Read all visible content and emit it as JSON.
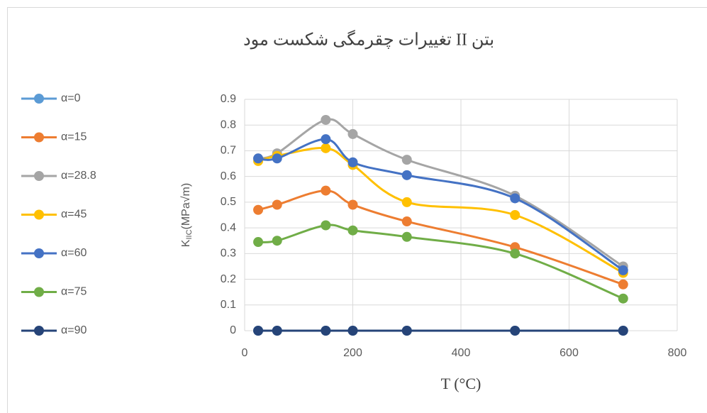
{
  "chart_data": {
    "type": "line",
    "title": "تغییرات چقرمگی شکست مود II بتن",
    "xlabel": "T (°C)",
    "ylabel": {
      "main": "K",
      "sub": "IIC",
      "unit": "(MPa√m)"
    },
    "x": [
      25,
      60,
      150,
      200,
      300,
      500,
      700
    ],
    "xlim": [
      0,
      800
    ],
    "xticks": [
      0,
      200,
      400,
      600,
      800
    ],
    "ylim": [
      0,
      0.9
    ],
    "yticks": [
      0,
      0.1,
      0.2,
      0.3,
      0.4,
      0.5,
      0.6,
      0.7,
      0.8,
      0.9
    ],
    "grid": true,
    "smooth": true,
    "legend": "left",
    "series": [
      {
        "name": "α=0",
        "color": "#5b9bd5",
        "values": [
          0,
          0,
          0,
          0,
          0,
          0,
          0
        ]
      },
      {
        "name": "α=15",
        "color": "#ed7d31",
        "values": [
          0.47,
          0.49,
          0.545,
          0.49,
          0.425,
          0.325,
          0.18
        ]
      },
      {
        "name": "α=28.8",
        "color": "#a5a5a5",
        "values": [
          0.67,
          0.69,
          0.82,
          0.765,
          0.665,
          0.525,
          0.25
        ]
      },
      {
        "name": "α=45",
        "color": "#ffc000",
        "values": [
          0.66,
          0.68,
          0.71,
          0.645,
          0.5,
          0.45,
          0.225
        ]
      },
      {
        "name": "α=60",
        "color": "#4472c4",
        "values": [
          0.67,
          0.67,
          0.745,
          0.655,
          0.605,
          0.515,
          0.235
        ]
      },
      {
        "name": "α=75",
        "color": "#70ad47",
        "values": [
          0.345,
          0.35,
          0.41,
          0.39,
          0.365,
          0.3,
          0.125
        ]
      },
      {
        "name": "α=90",
        "color": "#264478",
        "values": [
          0,
          0,
          0,
          0,
          0,
          0,
          0
        ]
      }
    ]
  }
}
